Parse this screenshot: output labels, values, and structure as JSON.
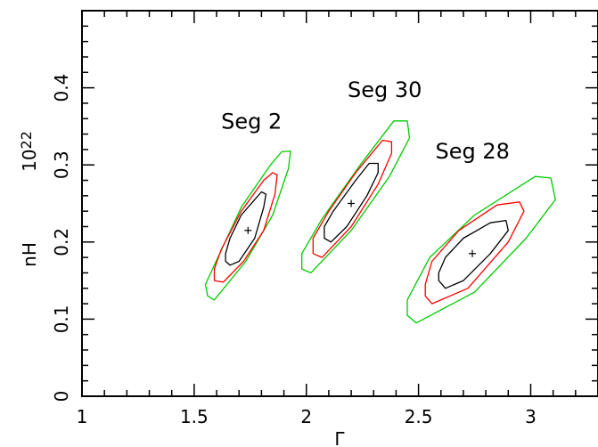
{
  "chart_data": {
    "type": "scatter",
    "subtype": "confidence-contours",
    "xlabel": "Γ",
    "ylabel": "nH",
    "ylabel_unit": "10^22",
    "xlim": [
      1,
      3.3
    ],
    "ylim": [
      0,
      0.5
    ],
    "x_ticks": [
      "1",
      "1.5",
      "2",
      "2.5",
      "3"
    ],
    "y_ticks": [
      "0",
      "0.1",
      "0.2",
      "0.3",
      "0.4"
    ],
    "grid": false,
    "contour_colors": {
      "inner": "#000000",
      "middle": "#ff0000",
      "outer": "#00cc00"
    },
    "segments": [
      {
        "label": "Seg 2",
        "best_fit": {
          "x": 1.74,
          "y": 0.215
        },
        "contours": {
          "inner": [
            [
              1.64,
              0.175
            ],
            [
              1.66,
              0.17
            ],
            [
              1.7,
              0.175
            ],
            [
              1.77,
              0.205
            ],
            [
              1.81,
              0.245
            ],
            [
              1.82,
              0.262
            ],
            [
              1.8,
              0.265
            ],
            [
              1.77,
              0.255
            ],
            [
              1.71,
              0.235
            ],
            [
              1.66,
              0.205
            ],
            [
              1.64,
              0.185
            ]
          ],
          "middle": [
            [
              1.59,
              0.15
            ],
            [
              1.63,
              0.148
            ],
            [
              1.72,
              0.175
            ],
            [
              1.81,
              0.215
            ],
            [
              1.86,
              0.262
            ],
            [
              1.87,
              0.287
            ],
            [
              1.85,
              0.29
            ],
            [
              1.81,
              0.28
            ],
            [
              1.71,
              0.24
            ],
            [
              1.62,
              0.19
            ],
            [
              1.59,
              0.165
            ]
          ],
          "outer": [
            [
              1.56,
              0.13
            ],
            [
              1.59,
              0.125
            ],
            [
              1.73,
              0.175
            ],
            [
              1.85,
              0.235
            ],
            [
              1.92,
              0.295
            ],
            [
              1.93,
              0.318
            ],
            [
              1.89,
              0.317
            ],
            [
              1.84,
              0.3
            ],
            [
              1.71,
              0.245
            ],
            [
              1.59,
              0.17
            ],
            [
              1.55,
              0.145
            ]
          ]
        }
      },
      {
        "label": "Seg 30",
        "best_fit": {
          "x": 2.2,
          "y": 0.25
        },
        "contours": {
          "inner": [
            [
              2.08,
              0.205
            ],
            [
              2.11,
              0.2
            ],
            [
              2.18,
              0.22
            ],
            [
              2.27,
              0.26
            ],
            [
              2.32,
              0.29
            ],
            [
              2.32,
              0.302
            ],
            [
              2.28,
              0.302
            ],
            [
              2.22,
              0.28
            ],
            [
              2.12,
              0.24
            ],
            [
              2.08,
              0.22
            ]
          ],
          "middle": [
            [
              2.03,
              0.185
            ],
            [
              2.07,
              0.18
            ],
            [
              2.2,
              0.22
            ],
            [
              2.32,
              0.275
            ],
            [
              2.38,
              0.315
            ],
            [
              2.38,
              0.33
            ],
            [
              2.34,
              0.332
            ],
            [
              2.22,
              0.29
            ],
            [
              2.1,
              0.24
            ],
            [
              2.03,
              0.205
            ]
          ],
          "outer": [
            [
              1.98,
              0.165
            ],
            [
              2.02,
              0.16
            ],
            [
              2.2,
              0.215
            ],
            [
              2.37,
              0.285
            ],
            [
              2.46,
              0.335
            ],
            [
              2.45,
              0.357
            ],
            [
              2.39,
              0.357
            ],
            [
              2.24,
              0.3
            ],
            [
              2.07,
              0.23
            ],
            [
              1.98,
              0.185
            ]
          ]
        }
      },
      {
        "label": "Seg 28",
        "best_fit": {
          "x": 2.74,
          "y": 0.185
        },
        "contours": {
          "inner": [
            [
              2.59,
              0.15
            ],
            [
              2.62,
              0.14
            ],
            [
              2.7,
              0.15
            ],
            [
              2.82,
              0.185
            ],
            [
              2.9,
              0.215
            ],
            [
              2.89,
              0.228
            ],
            [
              2.82,
              0.225
            ],
            [
              2.7,
              0.205
            ],
            [
              2.62,
              0.18
            ],
            [
              2.59,
              0.16
            ]
          ],
          "middle": [
            [
              2.53,
              0.13
            ],
            [
              2.56,
              0.12
            ],
            [
              2.72,
              0.14
            ],
            [
              2.9,
              0.2
            ],
            [
              2.97,
              0.24
            ],
            [
              2.95,
              0.252
            ],
            [
              2.85,
              0.248
            ],
            [
              2.68,
              0.215
            ],
            [
              2.56,
              0.175
            ],
            [
              2.53,
              0.145
            ]
          ],
          "outer": [
            [
              2.45,
              0.105
            ],
            [
              2.49,
              0.095
            ],
            [
              2.75,
              0.135
            ],
            [
              2.98,
              0.205
            ],
            [
              3.11,
              0.255
            ],
            [
              3.09,
              0.283
            ],
            [
              3.02,
              0.285
            ],
            [
              2.75,
              0.235
            ],
            [
              2.55,
              0.18
            ],
            [
              2.45,
              0.125
            ]
          ]
        }
      }
    ]
  }
}
